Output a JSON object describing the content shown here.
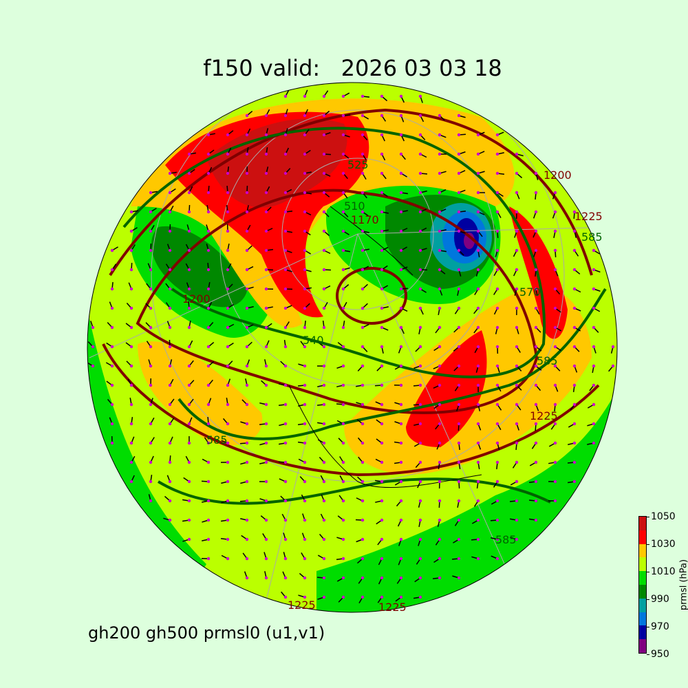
{
  "title": "f150 valid:   2026 03 03 18",
  "subtitle": "gh200 gh500 prmsl0 (u1,v1)",
  "colorbar": {
    "label": "prmsl (hPa)",
    "ticks": [
      "1050",
      "1030",
      "1010",
      "990",
      "970",
      "950"
    ],
    "levels": [
      950,
      960,
      970,
      980,
      990,
      1000,
      1010,
      1020,
      1030,
      1040,
      1050
    ],
    "colors": [
      "#800080",
      "#0000a0",
      "#0077dd",
      "#00a0a0",
      "#008800",
      "#00dd00",
      "#bbff00",
      "#ffc800",
      "#ff0000",
      "#cc1010"
    ]
  },
  "contour_labels": {
    "gh500": [
      "510",
      "525",
      "540",
      "570",
      "585",
      "585",
      "585",
      "585"
    ],
    "gh200": [
      "1170",
      "1200",
      "1200",
      "1225",
      "1225",
      "1225",
      "1225"
    ]
  },
  "colors": {
    "gh500": "#006400",
    "gh200": "#800000",
    "wind_barbs": "#000000",
    "wind_dots": "#cc00cc",
    "background": "#ddffdd"
  }
}
